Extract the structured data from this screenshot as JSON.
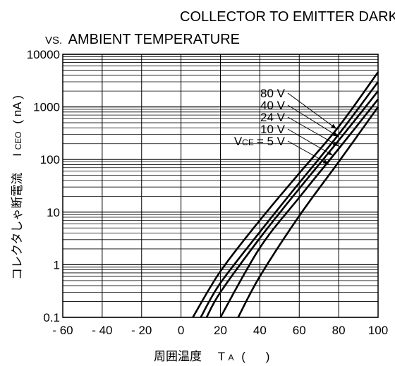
{
  "chart_data": {
    "type": "line",
    "title_line1": "COLLECTOR TO EMITTER DARK CURRENT",
    "title_line2_prefix": "VS.",
    "title_line2_rest": "AMBIENT TEMPERATURE",
    "xlabel": {
      "text": "周囲温度",
      "symbol_main": "T",
      "symbol_sub": "A",
      "paren_open": "(",
      "paren_close": ")"
    },
    "ylabel": {
      "text": "コレクタしゃ断電流",
      "symbol_main": "I",
      "symbol_sub": "CEO",
      "unit": "( nA )"
    },
    "xlim": [
      -60,
      100
    ],
    "ylim": [
      0.1,
      10000
    ],
    "y_scale": "log",
    "x_ticks": [
      -60,
      -40,
      -20,
      0,
      20,
      40,
      60,
      80,
      100
    ],
    "x_tick_labels": [
      "- 60",
      "- 40",
      "- 20",
      "0",
      "20",
      "40",
      "60",
      "80",
      "100"
    ],
    "y_ticks": [
      0.1,
      1,
      10,
      100,
      1000,
      10000
    ],
    "y_tick_labels": [
      "0.1",
      "1",
      "10",
      "100",
      "1000",
      "10000"
    ],
    "grid": true,
    "series": [
      {
        "name": "80 V",
        "x": [
          6,
          20,
          40,
          60,
          80,
          100
        ],
        "y": [
          0.1,
          0.75,
          7,
          55,
          420,
          4600
        ]
      },
      {
        "name": "40 V",
        "x": [
          10,
          20,
          40,
          60,
          80,
          100
        ],
        "y": [
          0.1,
          0.45,
          4.2,
          36,
          300,
          3000
        ]
      },
      {
        "name": "24 V",
        "x": [
          13,
          20,
          40,
          60,
          80,
          100
        ],
        "y": [
          0.1,
          0.3,
          3.2,
          28,
          230,
          2000
        ]
      },
      {
        "name": "10 V",
        "x": [
          20,
          40,
          60,
          80,
          100
        ],
        "y": [
          0.1,
          2.1,
          19,
          160,
          1400
        ]
      },
      {
        "name": "5 V",
        "x": [
          29,
          40,
          60,
          80,
          100
        ],
        "y": [
          0.1,
          0.6,
          8.5,
          90,
          1000
        ]
      }
    ],
    "annotations": [
      {
        "text": "80 V",
        "points_to": {
          "x": 79,
          "y": 380
        }
      },
      {
        "text": "40 V",
        "points_to": {
          "x": 80,
          "y": 270
        }
      },
      {
        "text": "24 V",
        "points_to": {
          "x": 80,
          "y": 180
        }
      },
      {
        "text": "10 V",
        "points_to": {
          "x": 77,
          "y": 120
        }
      },
      {
        "prefix_main": "V",
        "prefix_sub": "CE",
        "text": "= 5 V",
        "points_to": {
          "x": 75,
          "y": 82
        }
      }
    ]
  }
}
